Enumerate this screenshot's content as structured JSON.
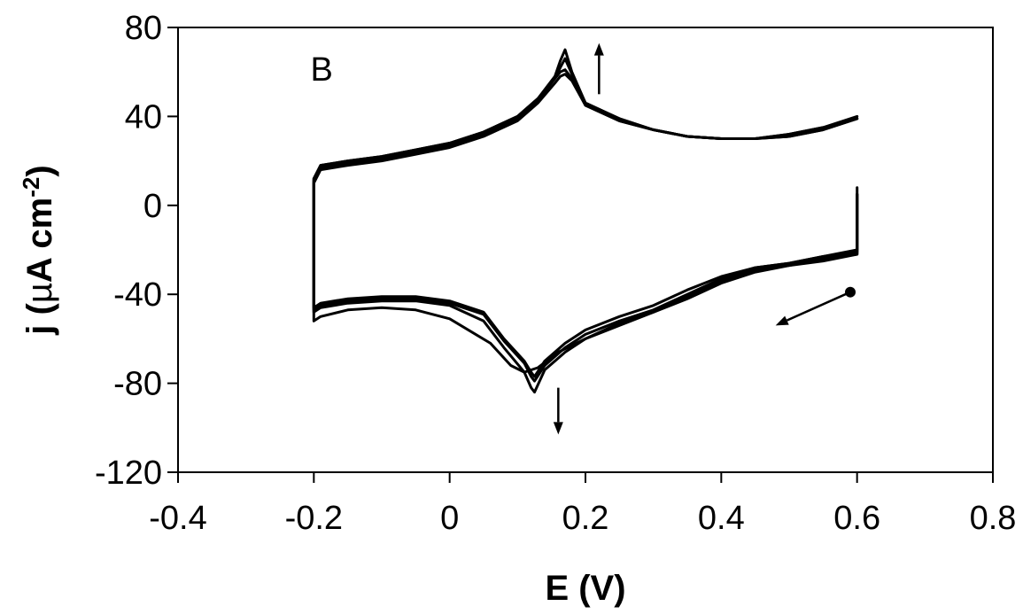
{
  "chart_data": {
    "type": "line",
    "title": "",
    "panel_label": "B",
    "xlabel": "E (V)",
    "ylabel": {
      "prefix": "j (",
      "mu": "µ",
      "unit": "A cm",
      "superscript": "-2",
      "suffix": ")"
    },
    "xlim": [
      -0.4,
      0.8
    ],
    "ylim": [
      -120,
      80
    ],
    "xticks": [
      -0.4,
      -0.2,
      0,
      0.2,
      0.4,
      0.6,
      0.8
    ],
    "yticks": [
      -120,
      -80,
      -40,
      0,
      40,
      80
    ],
    "xtick_labels": [
      "-0.4",
      "-0.2",
      "0",
      "0.2",
      "0.4",
      "0.6",
      "0.8"
    ],
    "ytick_labels": [
      "-120",
      "-80",
      "-40",
      "0",
      "40",
      "80"
    ],
    "grid": false,
    "legend": "none",
    "series": [
      {
        "x": [
          0.6,
          0.6,
          0.55,
          0.5,
          0.45,
          0.4,
          0.35,
          0.3,
          0.25,
          0.2,
          0.17,
          0.14,
          0.125,
          0.12,
          0.11,
          0.08,
          0.05,
          0.0,
          -0.05,
          -0.1,
          -0.15,
          -0.19,
          -0.2,
          -0.2,
          -0.19,
          -0.15,
          -0.1,
          -0.05,
          0.0,
          0.05,
          0.1,
          0.13,
          0.155,
          0.163,
          0.17,
          0.18,
          0.2,
          0.25,
          0.3,
          0.35,
          0.4,
          0.45,
          0.5,
          0.55,
          0.6
        ],
        "y": [
          5,
          -20,
          -23,
          -26,
          -28,
          -32,
          -38,
          -45,
          -50,
          -56,
          -62,
          -70,
          -77,
          -75,
          -70,
          -60,
          -48,
          -43,
          -41,
          -41,
          -42,
          -44,
          -46,
          12,
          18,
          20,
          22,
          25,
          28,
          33,
          40,
          48,
          58,
          65,
          70,
          60,
          46,
          39,
          34,
          31,
          30,
          30,
          32,
          35,
          40
        ]
      },
      {
        "x": [
          0.6,
          0.6,
          0.55,
          0.5,
          0.45,
          0.4,
          0.35,
          0.3,
          0.25,
          0.2,
          0.17,
          0.14,
          0.125,
          0.12,
          0.11,
          0.08,
          0.05,
          0.0,
          -0.05,
          -0.1,
          -0.15,
          -0.19,
          -0.2,
          -0.2,
          -0.19,
          -0.15,
          -0.1,
          -0.05,
          0.0,
          0.05,
          0.1,
          0.13,
          0.155,
          0.163,
          0.17,
          0.18,
          0.2,
          0.25,
          0.3,
          0.35,
          0.4,
          0.45,
          0.5,
          0.55,
          0.6
        ],
        "y": [
          5,
          -21,
          -23,
          -26,
          -28,
          -33,
          -40,
          -47,
          -52,
          -58,
          -64,
          -72,
          -79,
          -77,
          -71,
          -61,
          -49,
          -44,
          -42,
          -42,
          -43,
          -45,
          -47,
          12,
          18,
          20,
          22,
          25,
          28,
          33,
          40,
          48,
          57,
          62,
          66,
          59,
          46,
          39,
          34,
          31,
          30,
          30,
          32,
          35,
          39
        ]
      },
      {
        "x": [
          0.6,
          0.6,
          0.55,
          0.5,
          0.45,
          0.4,
          0.35,
          0.3,
          0.25,
          0.2,
          0.17,
          0.14,
          0.125,
          0.12,
          0.11,
          0.08,
          0.05,
          0.0,
          -0.05,
          -0.1,
          -0.15,
          -0.19,
          -0.2,
          -0.2,
          -0.19,
          -0.15,
          -0.1,
          -0.05,
          0.0,
          0.05,
          0.1,
          0.13,
          0.155,
          0.163,
          0.17,
          0.18,
          0.2,
          0.25,
          0.3,
          0.35,
          0.4,
          0.45,
          0.5,
          0.55,
          0.6
        ],
        "y": [
          5,
          -22,
          -24,
          -27,
          -29,
          -34,
          -41,
          -48,
          -53,
          -60,
          -66,
          -74,
          -84,
          -82,
          -75,
          -64,
          -52,
          -45,
          -43,
          -43,
          -44,
          -46,
          -48,
          11,
          17,
          19,
          21,
          24,
          27,
          32,
          39,
          47,
          57,
          60,
          61,
          57,
          45,
          38,
          34,
          31,
          30,
          30,
          31,
          34,
          39
        ]
      },
      {
        "x": [
          0.6,
          0.6,
          0.55,
          0.5,
          0.45,
          0.4,
          0.35,
          0.3,
          0.25,
          0.2,
          0.16,
          0.13,
          0.11,
          0.09,
          0.06,
          0.0,
          -0.05,
          -0.1,
          -0.15,
          -0.19,
          -0.2,
          -0.2,
          -0.19,
          -0.15,
          -0.1,
          -0.05,
          0.0,
          0.05,
          0.1,
          0.13,
          0.155,
          0.163,
          0.17,
          0.18,
          0.2,
          0.25,
          0.3,
          0.35,
          0.4,
          0.45,
          0.5,
          0.55,
          0.6
        ],
        "y": [
          8,
          -22,
          -25,
          -27,
          -30,
          -35,
          -42,
          -48,
          -54,
          -60,
          -66,
          -73,
          -75,
          -72,
          -62,
          -51,
          -47,
          -46,
          -47,
          -50,
          -52,
          10,
          16,
          18,
          20,
          23,
          26,
          31,
          38,
          46,
          55,
          58,
          59,
          56,
          45,
          38,
          34,
          31,
          30,
          30,
          31,
          34,
          39
        ]
      }
    ],
    "annotations": [
      {
        "type": "arrow",
        "from": [
          0.22,
          50
        ],
        "to": [
          0.22,
          73
        ]
      },
      {
        "type": "arrow",
        "from": [
          0.16,
          -82
        ],
        "to": [
          0.16,
          -103
        ]
      },
      {
        "type": "arrow",
        "from": [
          0.59,
          -39
        ],
        "to": [
          0.48,
          -54
        ],
        "start_marker": "dot"
      }
    ]
  }
}
